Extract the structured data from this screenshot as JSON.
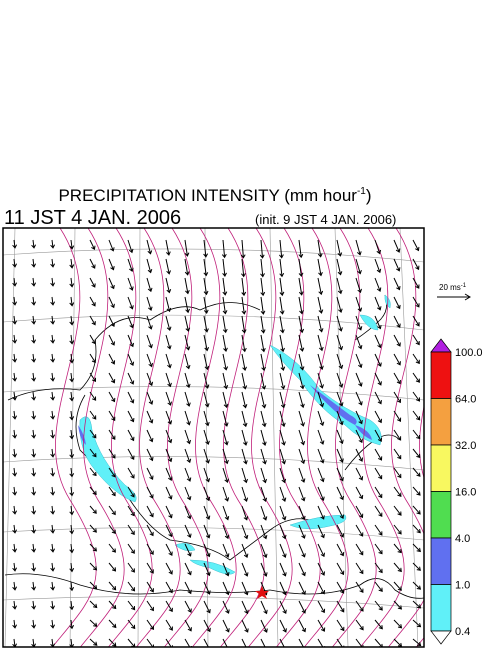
{
  "header": {
    "title": "PRECIPITATION INTENSITY (mm hour",
    "title_exponent": "-1",
    "title_close": ")",
    "valid_time": "11 JST 4 JAN. 2006",
    "init_time": "(init. 9 JST 4 JAN. 2006)"
  },
  "wind_scale": {
    "label": "20 ms",
    "exponent": "-1"
  },
  "colorbar": {
    "levels": [
      "100.0",
      "64.0",
      "32.0",
      "16.0",
      "4.0",
      "1.0",
      "0.4"
    ],
    "colors": [
      "#b020e0",
      "#ee1111",
      "#f4a040",
      "#f8f860",
      "#50dd50",
      "#6070f0",
      "#60f0f8",
      "#ffffff"
    ]
  }
}
